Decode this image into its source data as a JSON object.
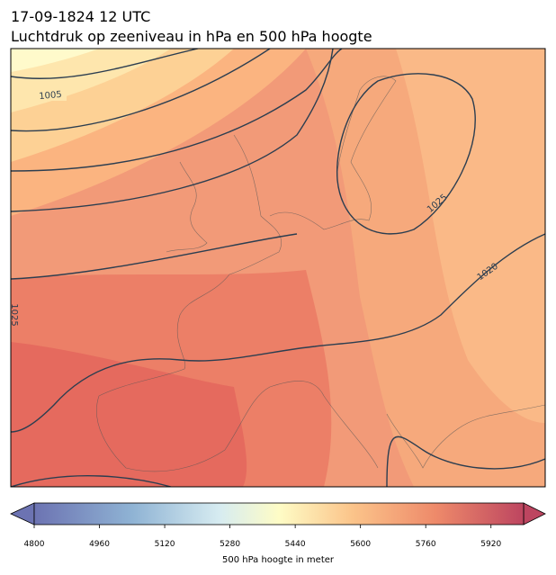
{
  "header": {
    "date": "17-09-1824 12 UTC",
    "title": "Luchtdruk op zeeniveau in hPa en 500 hPa hoogte"
  },
  "map": {
    "contour_labels": [
      "1005",
      "1025",
      "1020",
      "1025"
    ]
  },
  "colorbar": {
    "range": [
      4800,
      6000
    ],
    "ticks": [
      4800,
      4960,
      5120,
      5280,
      5440,
      5600,
      5760,
      5920
    ],
    "label": "500 hPa hoogte in meter"
  }
}
